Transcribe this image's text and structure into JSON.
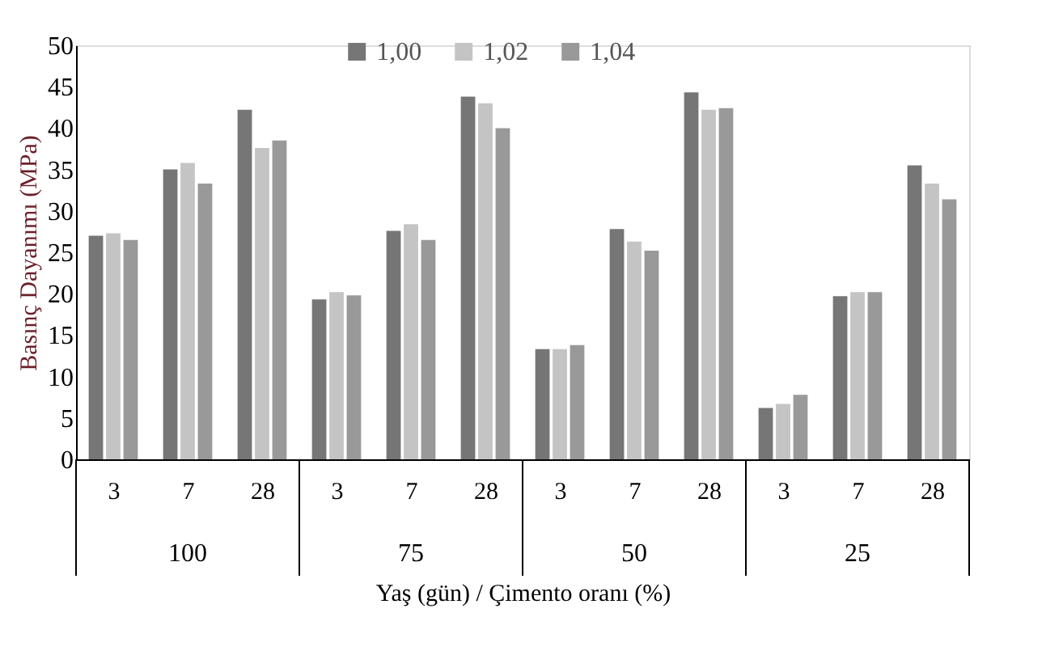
{
  "chart_data": {
    "type": "bar",
    "xlabel": "Yaş (gün) / Çimento oranı (%)",
    "ylabel": "Basınç Dayanımı (MPa)",
    "categories": [
      "3",
      "7",
      "28",
      "3",
      "7",
      "28",
      "3",
      "7",
      "28",
      "3",
      "7",
      "28"
    ],
    "annotations": [
      "100",
      "75",
      "50",
      "25"
    ],
    "series": [
      {
        "name": "1,00",
        "color": "#767676",
        "values": [
          27.0,
          35.0,
          42.2,
          19.3,
          27.6,
          43.8,
          13.3,
          27.8,
          44.3,
          6.2,
          19.7,
          35.5
        ]
      },
      {
        "name": "1,02",
        "color": "#c4c4c4",
        "values": [
          27.3,
          35.8,
          37.6,
          20.2,
          28.4,
          43.0,
          13.3,
          26.3,
          42.2,
          6.7,
          20.2,
          33.3
        ]
      },
      {
        "name": "1,04",
        "color": "#999999",
        "values": [
          26.5,
          33.3,
          38.5,
          19.8,
          26.5,
          40.0,
          13.8,
          25.2,
          42.4,
          7.8,
          20.2,
          31.4
        ]
      }
    ],
    "ylim": [
      0,
      50
    ],
    "yticks": [
      0,
      5,
      10,
      15,
      20,
      25,
      30,
      35,
      40,
      45,
      50
    ],
    "grid": false,
    "legend": "top"
  }
}
